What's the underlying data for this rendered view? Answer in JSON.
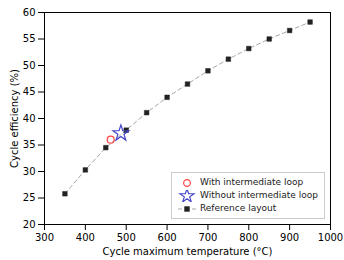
{
  "chart_data": {
    "type": "scatter",
    "xlabel": "Cycle maximum temperature (°C)",
    "ylabel": "Cycle efficiency (%)",
    "xlim": [
      300,
      1000
    ],
    "ylim": [
      20,
      60
    ],
    "xticks": [
      300,
      400,
      500,
      600,
      700,
      800,
      900,
      1000
    ],
    "yticks": [
      20,
      25,
      30,
      35,
      40,
      45,
      50,
      55,
      60
    ],
    "grid": false,
    "legend": "lower right",
    "series": [
      {
        "name": "With intermediate loop",
        "type": "scatter",
        "marker": "circle",
        "color": "#ff4444",
        "x": [
          462
        ],
        "values": [
          36.0
        ]
      },
      {
        "name": "Without intermediate loop",
        "type": "scatter",
        "marker": "star",
        "color": "#4444cc",
        "x": [
          487
        ],
        "values": [
          37.2
        ]
      },
      {
        "name": "Reference layout",
        "type": "line",
        "marker": "square",
        "line_style": "dashed",
        "color": "#222222",
        "x": [
          350,
          400,
          450,
          500,
          550,
          600,
          650,
          700,
          750,
          800,
          850,
          900,
          950
        ],
        "values": [
          25.8,
          30.3,
          34.5,
          37.8,
          41.1,
          44.0,
          46.5,
          49.0,
          51.2,
          53.2,
          55.0,
          56.6,
          58.2
        ]
      }
    ]
  }
}
